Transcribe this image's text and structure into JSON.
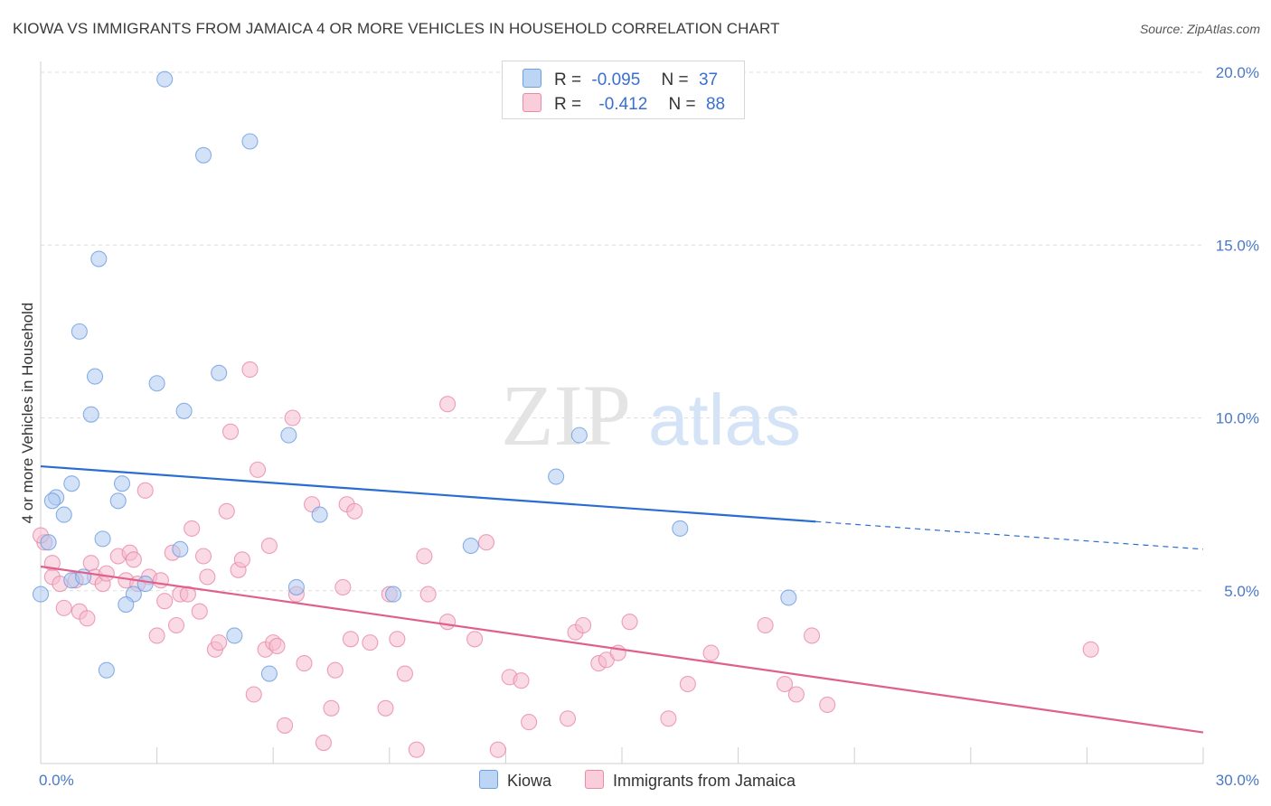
{
  "header": {
    "title": "KIOWA VS IMMIGRANTS FROM JAMAICA 4 OR MORE VEHICLES IN HOUSEHOLD CORRELATION CHART",
    "source": "Source: ZipAtlas.com"
  },
  "watermark": {
    "zip": "ZIP",
    "atlas": "atlas"
  },
  "legend": {
    "r_label": "R =",
    "n_label": "N =",
    "rows": [
      {
        "r": "-0.095",
        "n": "37",
        "color": "#aecbf0"
      },
      {
        "r": "-0.412",
        "n": "88",
        "color": "#f5bcce"
      }
    ]
  },
  "bottom_legend": [
    "Kiowa",
    "Immigrants from Jamaica"
  ],
  "chart_data": {
    "type": "scatter",
    "title": "KIOWA VS IMMIGRANTS FROM JAMAICA 4 OR MORE VEHICLES IN HOUSEHOLD CORRELATION CHART",
    "xlabel": "",
    "ylabel": "4 or more Vehicles in Household",
    "xlim": [
      0,
      30
    ],
    "ylim": [
      0,
      20
    ],
    "x_tick_labels": [
      "0.0%",
      "30.0%"
    ],
    "y_tick_labels": [
      "5.0%",
      "10.0%",
      "15.0%",
      "20.0%"
    ],
    "y_ticks": [
      5,
      10,
      15,
      20
    ],
    "grid": true,
    "series": [
      {
        "name": "Kiowa",
        "color": "#6d9ee0",
        "fill": "#aecbf0",
        "trend": {
          "x": [
            0,
            20,
            30
          ],
          "y": [
            8.6,
            7.0,
            6.2
          ],
          "solid_until": 20,
          "color": "#2a6dd0"
        },
        "points": [
          [
            3.2,
            19.8
          ],
          [
            5.4,
            18.0
          ],
          [
            4.2,
            17.6
          ],
          [
            1.5,
            14.6
          ],
          [
            1.0,
            12.5
          ],
          [
            1.4,
            11.2
          ],
          [
            3.0,
            11.0
          ],
          [
            4.6,
            11.3
          ],
          [
            1.3,
            10.1
          ],
          [
            3.7,
            10.2
          ],
          [
            6.4,
            9.5
          ],
          [
            13.9,
            9.5
          ],
          [
            13.3,
            8.3
          ],
          [
            0.8,
            8.1
          ],
          [
            2.1,
            8.1
          ],
          [
            0.4,
            7.7
          ],
          [
            0.3,
            7.6
          ],
          [
            2.0,
            7.6
          ],
          [
            0.6,
            7.2
          ],
          [
            7.2,
            7.2
          ],
          [
            16.5,
            6.8
          ],
          [
            0.2,
            6.4
          ],
          [
            1.6,
            6.5
          ],
          [
            11.1,
            6.3
          ],
          [
            3.6,
            6.2
          ],
          [
            0.8,
            5.3
          ],
          [
            1.1,
            5.4
          ],
          [
            2.7,
            5.2
          ],
          [
            6.6,
            5.1
          ],
          [
            2.4,
            4.9
          ],
          [
            9.1,
            4.9
          ],
          [
            19.3,
            4.8
          ],
          [
            0.0,
            4.9
          ],
          [
            2.2,
            4.6
          ],
          [
            5.0,
            3.7
          ],
          [
            1.7,
            2.7
          ],
          [
            5.9,
            2.6
          ]
        ]
      },
      {
        "name": "Immigrants from Jamaica",
        "color": "#e88aa8",
        "fill": "#f5bcce",
        "trend": {
          "x": [
            0,
            30
          ],
          "y": [
            5.7,
            0.9
          ],
          "color": "#e0608c"
        },
        "points": [
          [
            0.1,
            6.4
          ],
          [
            0.3,
            5.8
          ],
          [
            0.3,
            5.4
          ],
          [
            0.5,
            5.2
          ],
          [
            0.6,
            4.5
          ],
          [
            0.9,
            5.3
          ],
          [
            1.0,
            4.4
          ],
          [
            1.2,
            4.2
          ],
          [
            1.3,
            5.8
          ],
          [
            1.4,
            5.4
          ],
          [
            1.6,
            5.2
          ],
          [
            1.7,
            5.5
          ],
          [
            2.0,
            6.0
          ],
          [
            2.2,
            5.3
          ],
          [
            2.3,
            6.1
          ],
          [
            2.4,
            5.9
          ],
          [
            2.5,
            5.2
          ],
          [
            2.7,
            7.9
          ],
          [
            2.8,
            5.4
          ],
          [
            3.1,
            5.3
          ],
          [
            3.2,
            4.7
          ],
          [
            3.4,
            6.1
          ],
          [
            3.5,
            4.0
          ],
          [
            3.6,
            4.9
          ],
          [
            3.8,
            4.9
          ],
          [
            3.9,
            6.8
          ],
          [
            4.1,
            4.4
          ],
          [
            4.2,
            6.0
          ],
          [
            4.3,
            5.4
          ],
          [
            4.5,
            3.3
          ],
          [
            4.6,
            3.5
          ],
          [
            4.8,
            7.3
          ],
          [
            4.9,
            9.6
          ],
          [
            5.1,
            5.6
          ],
          [
            5.2,
            5.9
          ],
          [
            5.4,
            11.4
          ],
          [
            5.5,
            2.0
          ],
          [
            5.6,
            8.5
          ],
          [
            5.8,
            3.3
          ],
          [
            5.9,
            6.3
          ],
          [
            6.0,
            3.5
          ],
          [
            6.1,
            3.4
          ],
          [
            6.3,
            1.1
          ],
          [
            6.5,
            10.0
          ],
          [
            6.6,
            4.9
          ],
          [
            6.8,
            2.9
          ],
          [
            7.0,
            7.5
          ],
          [
            7.3,
            0.6
          ],
          [
            7.5,
            1.6
          ],
          [
            7.6,
            2.7
          ],
          [
            7.8,
            5.1
          ],
          [
            7.9,
            7.5
          ],
          [
            8.0,
            3.6
          ],
          [
            8.1,
            7.3
          ],
          [
            8.5,
            3.5
          ],
          [
            8.9,
            1.6
          ],
          [
            9.0,
            4.9
          ],
          [
            9.2,
            3.6
          ],
          [
            9.4,
            2.6
          ],
          [
            9.7,
            0.4
          ],
          [
            9.9,
            6.0
          ],
          [
            10.0,
            4.9
          ],
          [
            10.5,
            4.1
          ],
          [
            10.5,
            10.4
          ],
          [
            11.2,
            3.6
          ],
          [
            11.5,
            6.4
          ],
          [
            11.8,
            0.4
          ],
          [
            12.1,
            2.5
          ],
          [
            12.4,
            2.4
          ],
          [
            12.6,
            1.2
          ],
          [
            13.6,
            1.3
          ],
          [
            13.8,
            3.8
          ],
          [
            14.0,
            4.0
          ],
          [
            14.4,
            2.9
          ],
          [
            14.6,
            3.0
          ],
          [
            14.9,
            3.2
          ],
          [
            15.2,
            4.1
          ],
          [
            16.2,
            1.3
          ],
          [
            16.7,
            2.3
          ],
          [
            17.3,
            3.2
          ],
          [
            18.7,
            4.0
          ],
          [
            19.2,
            2.3
          ],
          [
            19.5,
            2.0
          ],
          [
            19.9,
            3.7
          ],
          [
            20.3,
            1.7
          ],
          [
            27.1,
            3.3
          ],
          [
            0.0,
            6.6
          ],
          [
            3.0,
            3.7
          ]
        ]
      }
    ]
  }
}
